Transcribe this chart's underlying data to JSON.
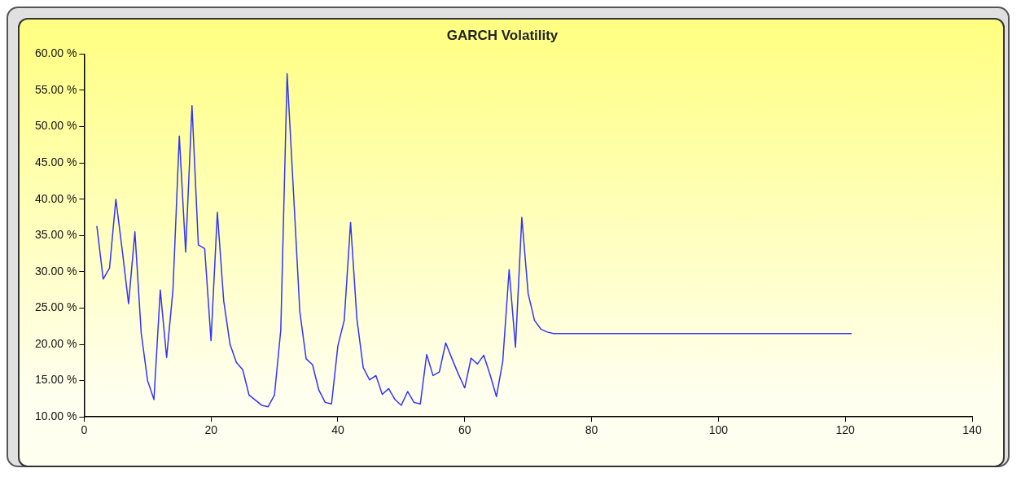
{
  "chart_data": {
    "type": "line",
    "title": "GARCH Volatility",
    "x": [
      2,
      3,
      4,
      5,
      6,
      7,
      8,
      9,
      10,
      11,
      12,
      13,
      14,
      15,
      16,
      17,
      18,
      19,
      20,
      21,
      22,
      23,
      24,
      25,
      26,
      27,
      28,
      29,
      30,
      31,
      32,
      33,
      34,
      35,
      36,
      37,
      38,
      39,
      40,
      41,
      42,
      43,
      44,
      45,
      46,
      47,
      48,
      49,
      50,
      51,
      52,
      53,
      54,
      55,
      56,
      57,
      58,
      59,
      60,
      61,
      62,
      63,
      64,
      65,
      66,
      67,
      68,
      69,
      70,
      71,
      72,
      73,
      74,
      75,
      76,
      77,
      78,
      79,
      80,
      81,
      82,
      83,
      84,
      85,
      86,
      87,
      88,
      89,
      90,
      91,
      92,
      93,
      94,
      95,
      96,
      97,
      98,
      99,
      100,
      101,
      102,
      103,
      104,
      105,
      106,
      107,
      108,
      109,
      110,
      111,
      112,
      113,
      114,
      115,
      116,
      117,
      118,
      119,
      120,
      121
    ],
    "series": [
      {
        "color": "#3333ff",
        "values": [
          36.3,
          29,
          30.5,
          40,
          33,
          25.6,
          35.5,
          21.5,
          15,
          12.4,
          27.5,
          18.2,
          27.5,
          48.7,
          32.7,
          52.9,
          33.7,
          33.2,
          20.5,
          38.2,
          26,
          20,
          17.5,
          16.5,
          13,
          12.3,
          11.6,
          11.4,
          13,
          22,
          57.3,
          41,
          24.5,
          18,
          17.2,
          13.7,
          12,
          11.8,
          19.8,
          23.3,
          36.8,
          23.5,
          16.8,
          15.1,
          15.7,
          13.1,
          13.9,
          12.4,
          11.6,
          13.5,
          12,
          11.8,
          18.6,
          15.7,
          16.2,
          20.2,
          18,
          15.9,
          14,
          18.1,
          17.3,
          18.5,
          15.8,
          12.8,
          17.7,
          30.3,
          19.6,
          37.5,
          27,
          23.3,
          22.1,
          21.7,
          21.5,
          21.5,
          21.5,
          21.5,
          21.5,
          21.5,
          21.5,
          21.5,
          21.5,
          21.5,
          21.5,
          21.5,
          21.5,
          21.5,
          21.5,
          21.5,
          21.5,
          21.5,
          21.5,
          21.5,
          21.5,
          21.5,
          21.5,
          21.5,
          21.5,
          21.5,
          21.5,
          21.5,
          21.5,
          21.5,
          21.5,
          21.5,
          21.5,
          21.5,
          21.5,
          21.5,
          21.5,
          21.5,
          21.5,
          21.5,
          21.5,
          21.5,
          21.5,
          21.5,
          21.5,
          21.5,
          21.5,
          21.5
        ]
      }
    ],
    "xlim": [
      0,
      140
    ],
    "xticks": [
      0,
      20,
      40,
      60,
      80,
      100,
      120,
      140
    ],
    "ylim": [
      10,
      60
    ],
    "yticks": [
      {
        "value": 10,
        "label": "10.00 %"
      },
      {
        "value": 15,
        "label": "15.00 %"
      },
      {
        "value": 20,
        "label": "20.00 %"
      },
      {
        "value": 25,
        "label": "25.00 %"
      },
      {
        "value": 30,
        "label": "30.00 %"
      },
      {
        "value": 35,
        "label": "35.00 %"
      },
      {
        "value": 40,
        "label": "40.00 %"
      },
      {
        "value": 45,
        "label": "45.00 %"
      },
      {
        "value": 50,
        "label": "50.00 %"
      },
      {
        "value": 55,
        "label": "55.00 %"
      },
      {
        "value": 60,
        "label": "60.00 %"
      }
    ],
    "grid": false,
    "legend": false,
    "marker": "none",
    "line_style": "solid"
  }
}
